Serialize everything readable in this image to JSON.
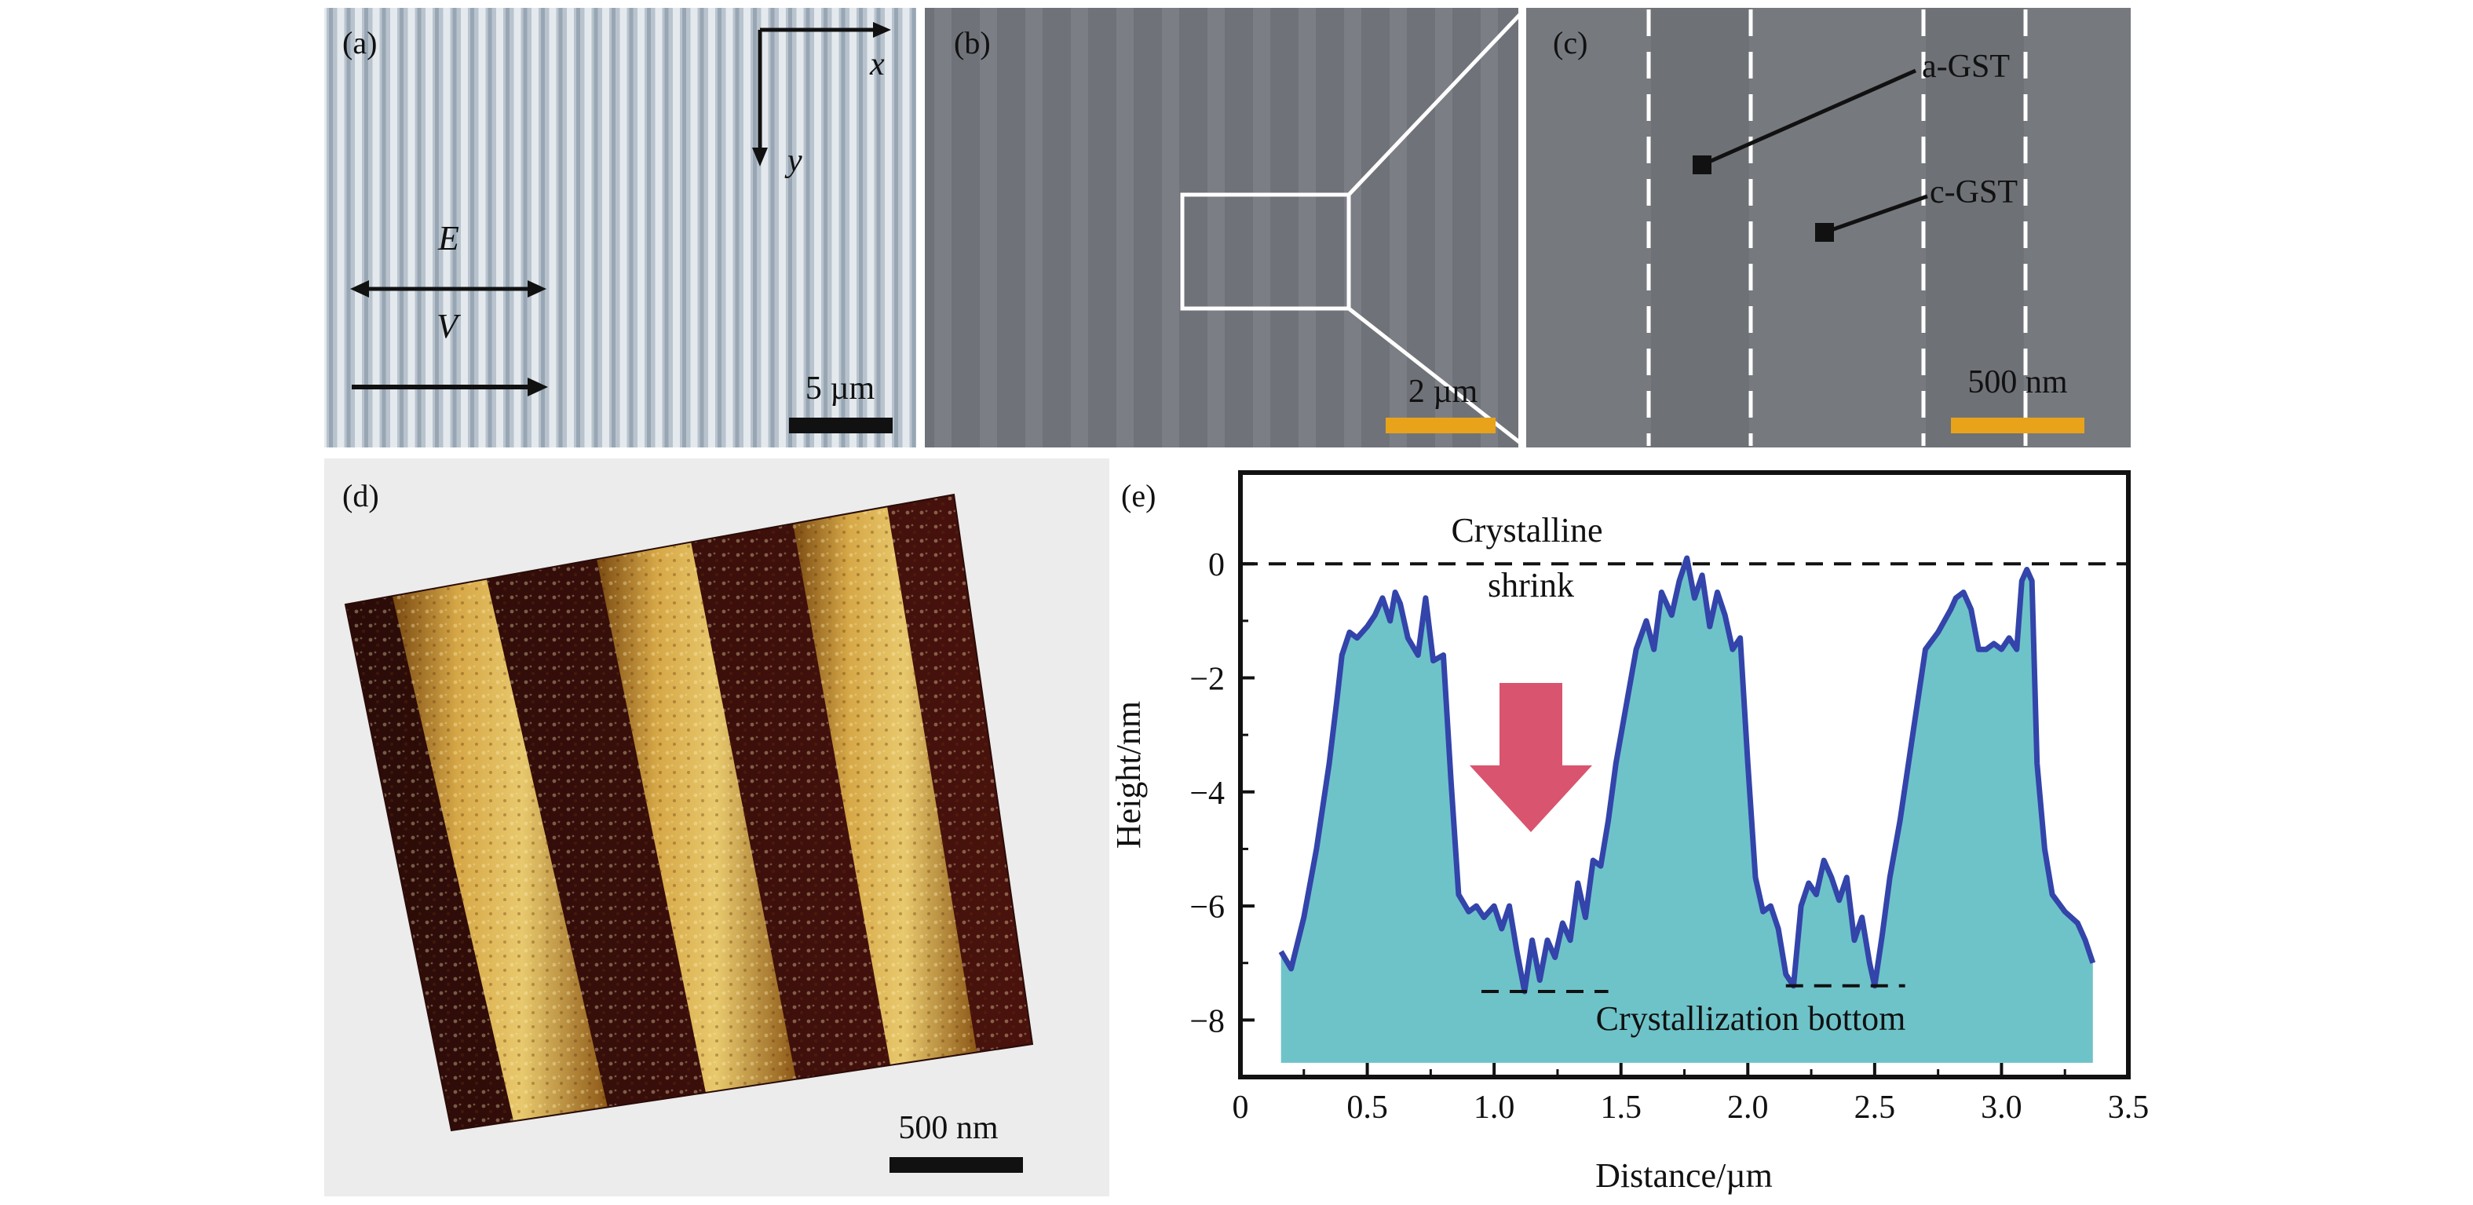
{
  "panels": {
    "a": {
      "label": "(a)",
      "axis_x": "x",
      "axis_y": "y",
      "field_label": "E",
      "velocity_label": "V",
      "scale_label": "5 µm"
    },
    "b": {
      "label": "(b)",
      "scale_label": "2 µm"
    },
    "c": {
      "label": "(c)",
      "annotation_amorphous": "a-GST",
      "annotation_crystalline": "c-GST",
      "scale_label": "500 nm"
    },
    "d": {
      "label": "(d)",
      "scale_label": "500 nm"
    },
    "e": {
      "label": "(e)",
      "annotation_top_line1": "Crystalline",
      "annotation_top_line2": "shrink",
      "annotation_bottom": "Crystallization bottom"
    }
  },
  "colors": {
    "profile_line": "#3344aa",
    "profile_fill": "#6ec3c9",
    "arrow": "#d9546e",
    "scale_bar_black": "#111111",
    "scale_bar_orange": "#e8a31a"
  },
  "chart_data": {
    "type": "area",
    "title": "",
    "xlabel": "Distance/µm",
    "ylabel": "Height/nm",
    "xlim": [
      0,
      3.5
    ],
    "ylim": [
      -9,
      1.6
    ],
    "xticks": [
      0,
      0.5,
      1.0,
      1.5,
      2.0,
      2.5,
      3.0,
      3.5
    ],
    "xtick_labels": [
      "0",
      "0.5",
      "1.0",
      "1.5",
      "2.0",
      "2.5",
      "3.0",
      "3.5"
    ],
    "yticks": [
      0,
      -2,
      -4,
      -6,
      -8
    ],
    "ytick_labels": [
      "0",
      "−2",
      "−4",
      "−6",
      "−8"
    ],
    "reference_lines": [
      {
        "y": 0,
        "x_from": 0,
        "x_to": 3.5,
        "name": "crystalline-shrink-line"
      },
      {
        "y": -7.5,
        "x_from": 0.95,
        "x_to": 1.45,
        "name": "crystallization-bottom-line-1"
      },
      {
        "y": -7.4,
        "x_from": 2.15,
        "x_to": 2.62,
        "name": "crystallization-bottom-line-2"
      }
    ],
    "series": [
      {
        "name": "Height profile",
        "x": [
          0.16,
          0.2,
          0.25,
          0.3,
          0.35,
          0.38,
          0.4,
          0.43,
          0.46,
          0.5,
          0.53,
          0.56,
          0.59,
          0.61,
          0.63,
          0.66,
          0.7,
          0.73,
          0.76,
          0.8,
          0.83,
          0.86,
          0.9,
          0.93,
          0.96,
          1.0,
          1.03,
          1.06,
          1.09,
          1.12,
          1.15,
          1.18,
          1.21,
          1.24,
          1.27,
          1.3,
          1.33,
          1.36,
          1.39,
          1.42,
          1.45,
          1.48,
          1.52,
          1.56,
          1.6,
          1.63,
          1.66,
          1.7,
          1.73,
          1.76,
          1.79,
          1.82,
          1.85,
          1.88,
          1.91,
          1.94,
          1.97,
          2.0,
          2.03,
          2.06,
          2.09,
          2.12,
          2.15,
          2.18,
          2.21,
          2.24,
          2.27,
          2.3,
          2.33,
          2.36,
          2.39,
          2.42,
          2.45,
          2.48,
          2.5,
          2.53,
          2.56,
          2.6,
          2.65,
          2.7,
          2.75,
          2.8,
          2.82,
          2.85,
          2.88,
          2.91,
          2.94,
          2.97,
          3.0,
          3.03,
          3.06,
          3.08,
          3.1,
          3.12,
          3.14,
          3.17,
          3.2,
          3.25,
          3.3,
          3.33,
          3.36
        ],
        "values": [
          -6.8,
          -7.1,
          -6.2,
          -5.0,
          -3.5,
          -2.4,
          -1.6,
          -1.2,
          -1.3,
          -1.1,
          -0.9,
          -0.6,
          -1.0,
          -0.5,
          -0.7,
          -1.3,
          -1.6,
          -0.6,
          -1.7,
          -1.6,
          -3.8,
          -5.8,
          -6.1,
          -6.0,
          -6.2,
          -6.0,
          -6.4,
          -6.0,
          -6.8,
          -7.5,
          -6.6,
          -7.3,
          -6.6,
          -6.9,
          -6.3,
          -6.6,
          -5.6,
          -6.2,
          -5.2,
          -5.3,
          -4.5,
          -3.5,
          -2.5,
          -1.5,
          -1.0,
          -1.5,
          -0.5,
          -0.9,
          -0.3,
          0.1,
          -0.6,
          -0.2,
          -1.1,
          -0.5,
          -0.9,
          -1.5,
          -1.3,
          -3.5,
          -5.5,
          -6.1,
          -6.0,
          -6.4,
          -7.2,
          -7.4,
          -6.0,
          -5.6,
          -5.8,
          -5.2,
          -5.5,
          -5.9,
          -5.5,
          -6.6,
          -6.2,
          -7.0,
          -7.4,
          -6.5,
          -5.5,
          -4.5,
          -3.0,
          -1.5,
          -1.2,
          -0.8,
          -0.6,
          -0.5,
          -0.8,
          -1.5,
          -1.5,
          -1.4,
          -1.5,
          -1.3,
          -1.5,
          -0.3,
          -0.1,
          -0.3,
          -3.5,
          -5.0,
          -5.8,
          -6.1,
          -6.3,
          -6.6,
          -7.0
        ]
      }
    ],
    "grid": false,
    "legend": "none"
  }
}
